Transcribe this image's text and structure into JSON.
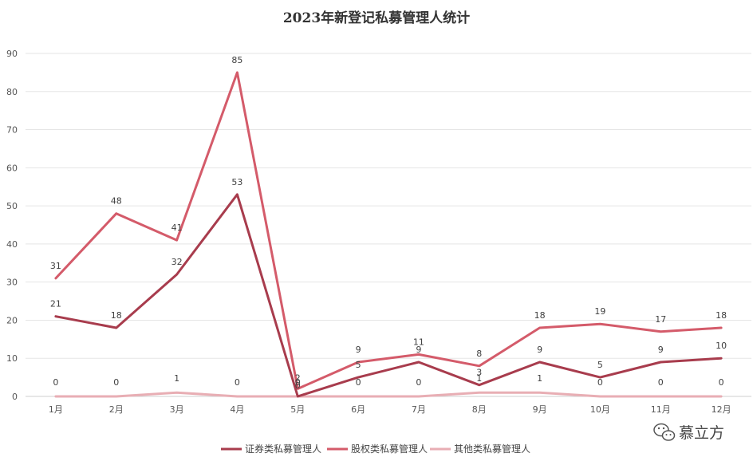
{
  "chart_data": {
    "type": "line",
    "title": "2023年新登记私募管理人统计",
    "categories": [
      "1月",
      "2月",
      "3月",
      "4月",
      "5月",
      "6月",
      "7月",
      "8月",
      "9月",
      "10月",
      "11月",
      "12月"
    ],
    "ylim": [
      0,
      90
    ],
    "yticks": [
      0,
      10,
      20,
      30,
      40,
      50,
      60,
      70,
      80,
      90
    ],
    "grid": true,
    "legend_position": "bottom",
    "series": [
      {
        "name": "证券类私募管理人",
        "color": "#a83c4d",
        "values": [
          21,
          18,
          32,
          53,
          0,
          5,
          9,
          3,
          9,
          5,
          9,
          10
        ]
      },
      {
        "name": "股权类私募管理人",
        "color": "#d45b6a",
        "values": [
          31,
          48,
          41,
          85,
          2,
          9,
          11,
          8,
          18,
          19,
          17,
          18
        ]
      },
      {
        "name": "其他类私募管理人",
        "color": "#e8aeb4",
        "values": [
          0,
          0,
          1,
          0,
          0,
          0,
          0,
          1,
          1,
          0,
          0,
          0
        ]
      }
    ]
  },
  "watermark": {
    "text": "慕立方",
    "icon": "wechat-icon"
  }
}
